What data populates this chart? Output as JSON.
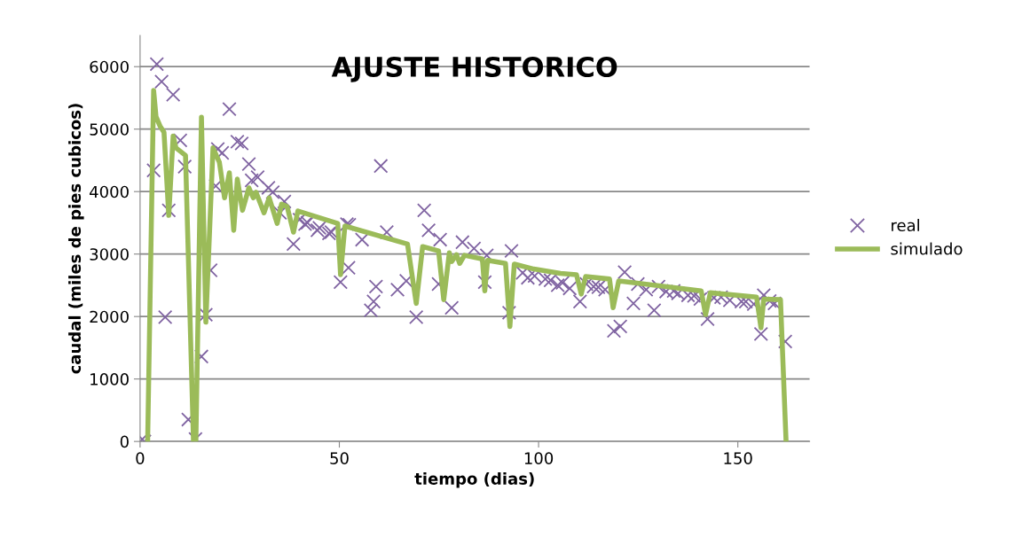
{
  "chart_data": {
    "type": "scatter",
    "title": "AJUSTE HISTORICO",
    "xlabel": "tiempo (dias)",
    "ylabel": "caudal (miles de pies cubicos)",
    "xlim": [
      0,
      168
    ],
    "xticks": [
      0,
      50,
      100,
      150
    ],
    "ylim": [
      0,
      6500
    ],
    "yticks": [
      0,
      1000,
      2000,
      3000,
      4000,
      5000,
      6000
    ],
    "grid": "y",
    "legend": "right",
    "series": [
      {
        "name": "real",
        "marker": "cross",
        "color": "#8064a2",
        "x": [
          0,
          1.1,
          3.4,
          4.2,
          5.4,
          6.3,
          7.2,
          8.3,
          10.1,
          11.2,
          12.1,
          13.9,
          15.4,
          16.5,
          17.7,
          19.0,
          19.5,
          20.6,
          22.4,
          24.4,
          25.5,
          27.3,
          28.0,
          29.5,
          32.2,
          33.3,
          35.1,
          36.2,
          38.5,
          40,
          41.4,
          42,
          44.5,
          45,
          47.4,
          48,
          50.3,
          51.9,
          52.3,
          52.5,
          55.7,
          57.9,
          58.6,
          59.2,
          60.4,
          61.9,
          64.6,
          66.8,
          69.3,
          71.3,
          72.4,
          74.9,
          75.3,
          78.2,
          80.9,
          83.8,
          86.5,
          87.0,
          92.6,
          93.2,
          96,
          97.3,
          99,
          101.7,
          103,
          104.8,
          106,
          107.8,
          110.4,
          112,
          113.8,
          115,
          116.7,
          118.9,
          120.5,
          121.6,
          123.8,
          124.9,
          127,
          129.0,
          130.1,
          132,
          133.9,
          135,
          137.5,
          139,
          140.6,
          142.4,
          144,
          145.8,
          148,
          150.9,
          152,
          154,
          155.8,
          156.5,
          158,
          159.2,
          161.9
        ],
        "values": [
          0,
          0,
          4340,
          6040,
          5760,
          1990,
          3700,
          5550,
          4820,
          4400,
          350,
          40,
          1360,
          2030,
          2740,
          4090,
          4680,
          4620,
          5320,
          4800,
          4770,
          4440,
          4180,
          4230,
          4060,
          3990,
          3660,
          3840,
          3160,
          3550,
          3480,
          3500,
          3380,
          3420,
          3330,
          3350,
          2550,
          3480,
          2780,
          3470,
          3230,
          2100,
          2240,
          2480,
          4410,
          3350,
          2430,
          2570,
          1990,
          3700,
          3380,
          2520,
          3230,
          2140,
          3190,
          3090,
          2550,
          2980,
          2060,
          3050,
          2700,
          2620,
          2650,
          2600,
          2580,
          2500,
          2540,
          2450,
          2240,
          2520,
          2480,
          2470,
          2430,
          1770,
          1840,
          2710,
          2210,
          2520,
          2430,
          2100,
          2480,
          2400,
          2410,
          2370,
          2340,
          2330,
          2280,
          1960,
          2300,
          2310,
          2260,
          2240,
          2240,
          2200,
          1720,
          2340,
          2250,
          2210,
          1600
        ]
      },
      {
        "name": "simulado",
        "type": "line",
        "marker": "none",
        "line_style": "solid",
        "color": "#9bbb59",
        "x": [
          1.9,
          3.4,
          4,
          5,
          6,
          7.2,
          8.3,
          9,
          10,
          11.4,
          13.4,
          14,
          15.4,
          16.5,
          18.3,
          19.9,
          21.2,
          22.4,
          23.5,
          24.4,
          25.7,
          27.3,
          28.4,
          29.1,
          31.1,
          32.4,
          34.4,
          35.5,
          36.9,
          38.5,
          39.6,
          49.6,
          50.3,
          51.4,
          67.1,
          69.3,
          70.9,
          74.9,
          76.2,
          77.6,
          78.2,
          79.4,
          80.2,
          81.4,
          85.9,
          86.5,
          87.2,
          91.7,
          92.8,
          93.9,
          98.8,
          105.5,
          109.5,
          110.7,
          111.8,
          117.8,
          118.7,
          120.1,
          140.8,
          141.9,
          143.1,
          154.7,
          155.8,
          156.5,
          160.7,
          162.1
        ],
        "values": [
          0,
          5620,
          5200,
          5050,
          4950,
          3620,
          4890,
          4700,
          4650,
          4580,
          0,
          0,
          5190,
          1910,
          4700,
          4470,
          3900,
          4300,
          3380,
          4200,
          3700,
          4060,
          3900,
          3990,
          3660,
          3900,
          3490,
          3800,
          3760,
          3350,
          3690,
          3490,
          2670,
          3450,
          3160,
          2210,
          3120,
          3050,
          2270,
          3020,
          2880,
          2990,
          2850,
          2980,
          2920,
          2410,
          2900,
          2850,
          1840,
          2840,
          2760,
          2690,
          2670,
          2360,
          2640,
          2600,
          2140,
          2570,
          2410,
          2030,
          2380,
          2310,
          1820,
          2280,
          2270,
          0
        ]
      }
    ]
  }
}
